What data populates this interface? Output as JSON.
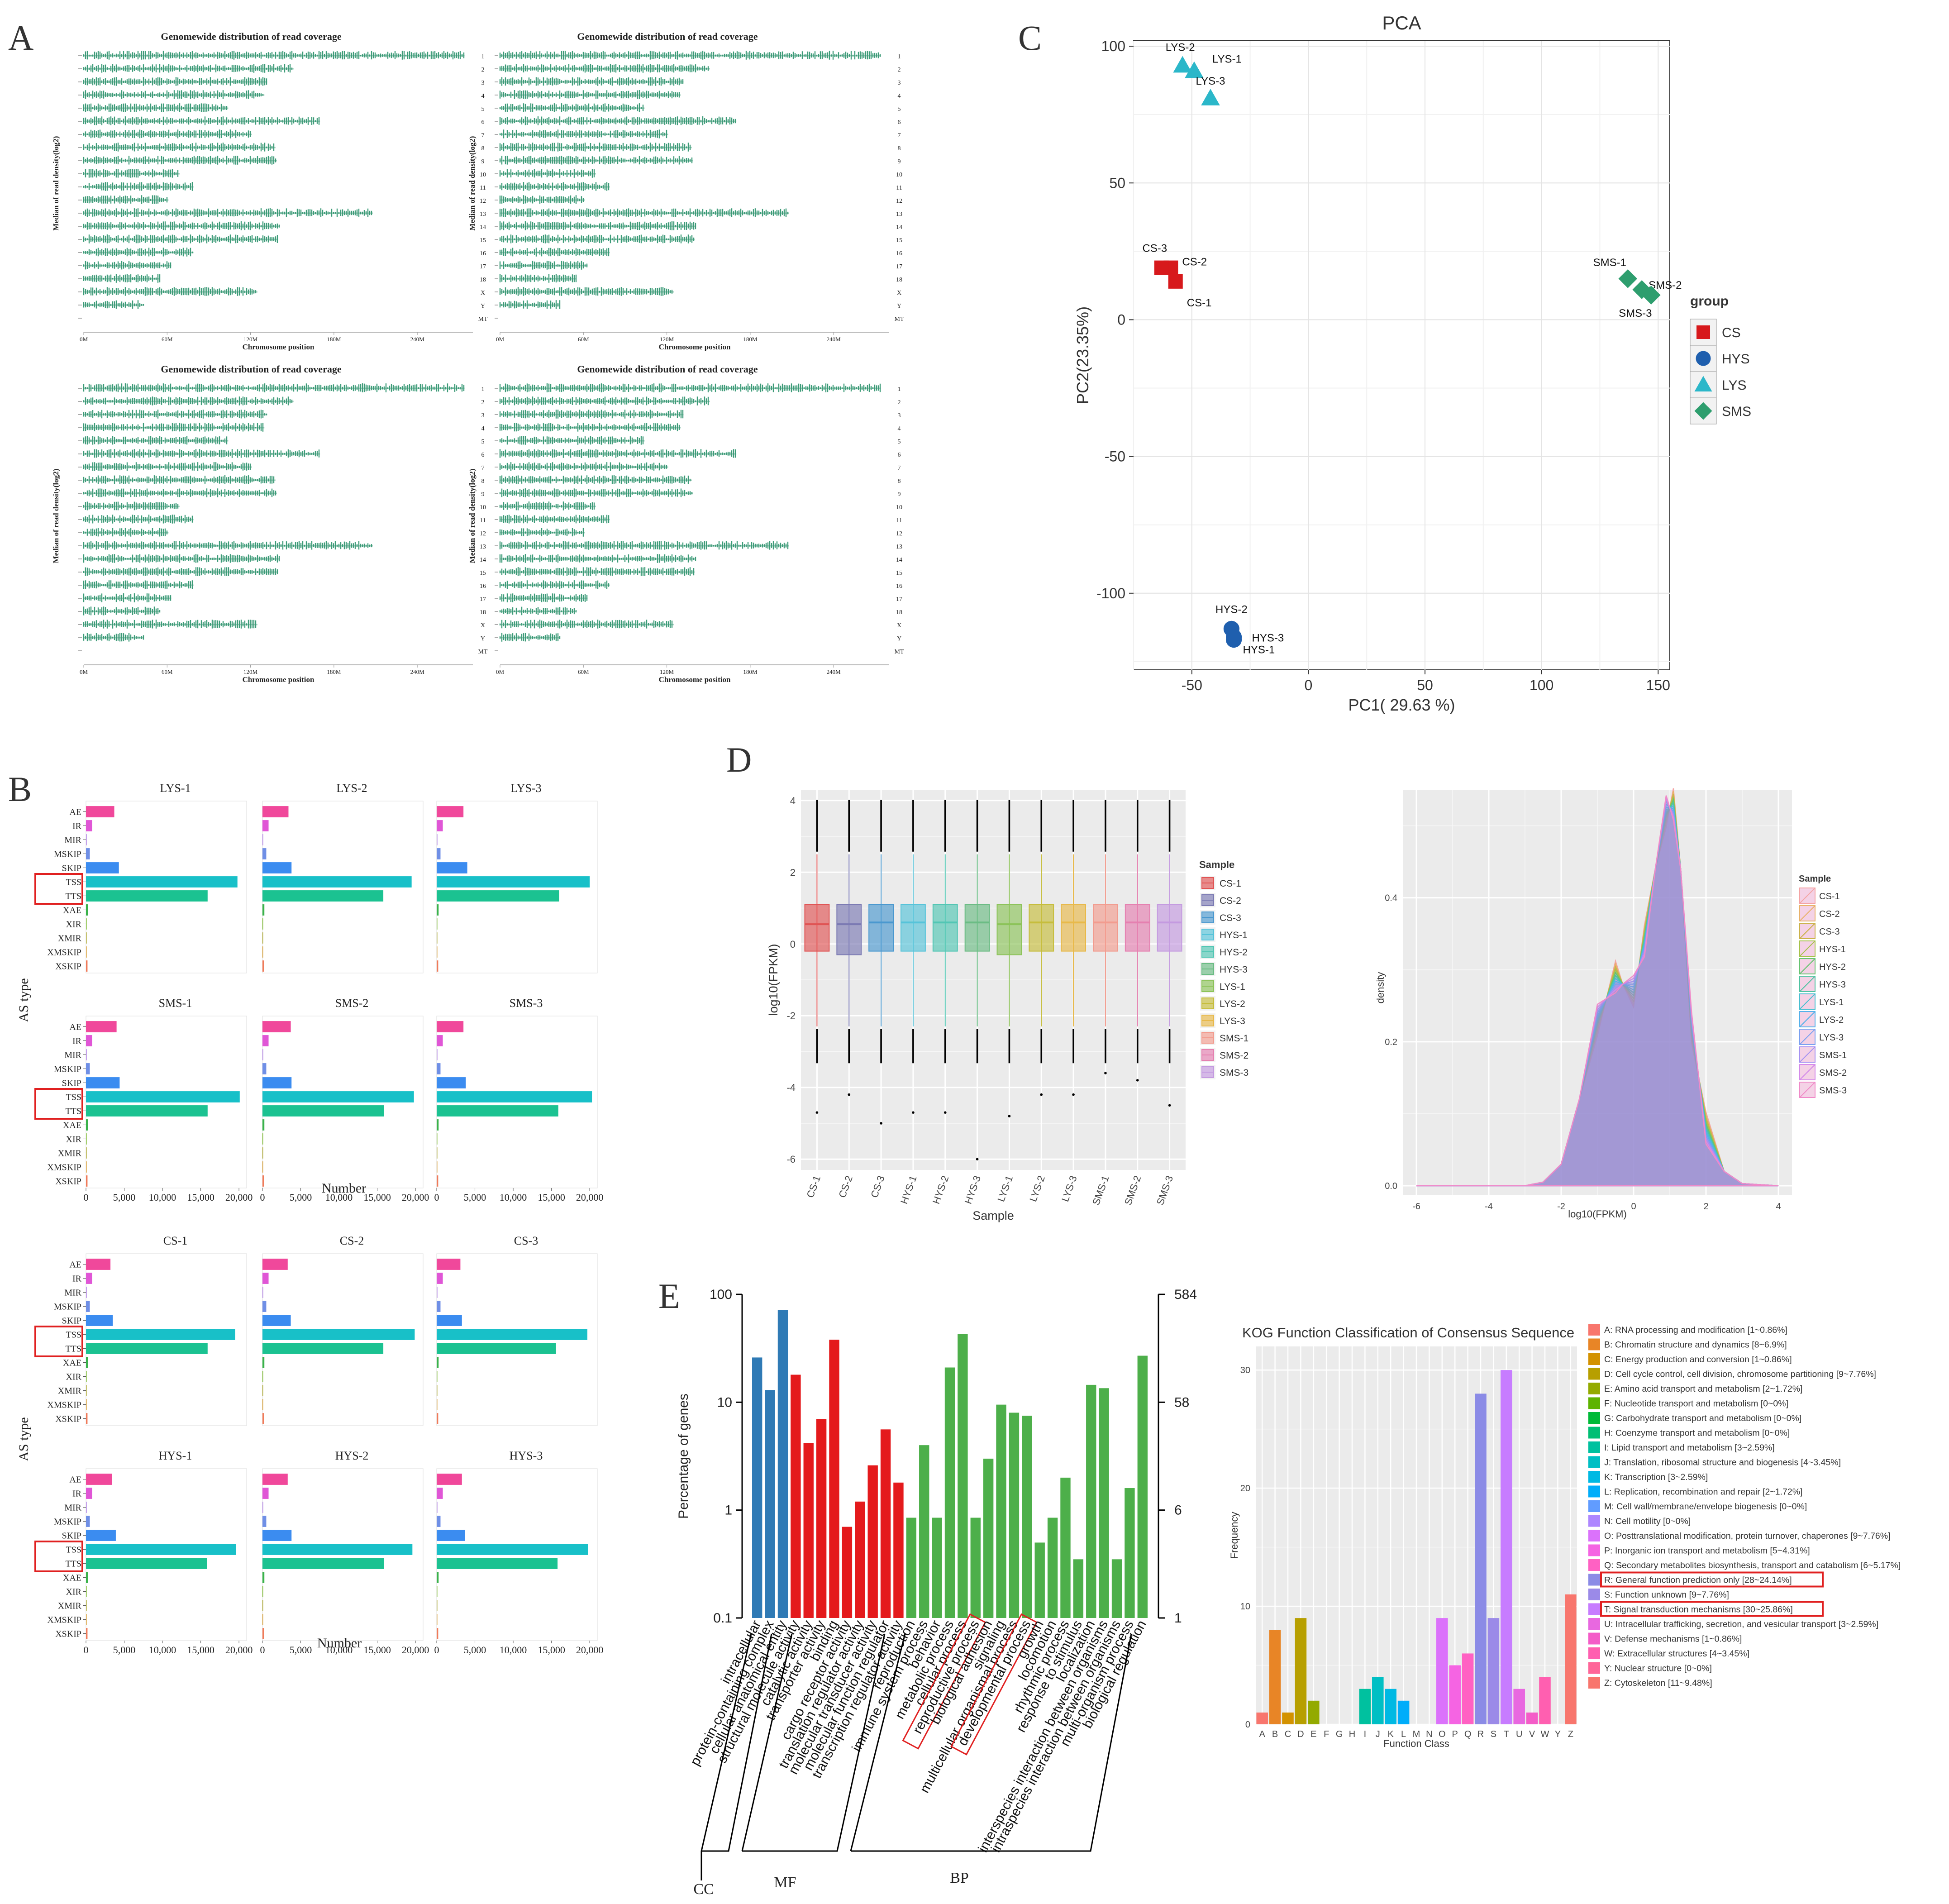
{
  "panel_letters": [
    "A",
    "B",
    "C",
    "D",
    "E"
  ],
  "colors": {
    "CS": "#d7191c",
    "HYS": "#1f5fae",
    "LYS": "#2bb7c9",
    "SMS": "#2e9e6e",
    "coverage": "#3d9b78",
    "AE": "#f0489b",
    "IR": "#e056d6",
    "MIR": "#b58ae6",
    "MSKIP": "#6f8fe6",
    "SKIP": "#3b8cf0",
    "TSS": "#18c0c8",
    "TTS": "#1bc291",
    "XAE": "#39b24a",
    "XIR": "#78b82a",
    "XMIR": "#a9a52a",
    "XMSKIP": "#d59a2c",
    "XSKIP": "#f07b5a",
    "highlight": "#e02020",
    "go_cc": "#2f7ab5",
    "go_mf": "#e41a1c",
    "go_bp": "#4daf4a"
  },
  "panelA": {
    "title": "Genomewide distribution of read coverage",
    "xlabel": "Chromosome position",
    "ylabel": "Median of read density(log2)",
    "chromosomes": [
      "1",
      "2",
      "3",
      "4",
      "5",
      "6",
      "7",
      "8",
      "9",
      "10",
      "11",
      "12",
      "13",
      "14",
      "15",
      "16",
      "17",
      "18",
      "X",
      "Y",
      "MT"
    ],
    "chrom_lengths_mb": [
      274,
      151,
      132,
      130,
      104,
      170,
      121,
      138,
      139,
      69,
      79,
      61,
      208,
      141,
      140,
      79,
      63,
      55,
      125,
      43,
      0
    ],
    "xticks": [
      "0M",
      "60M",
      "120M",
      "180M",
      "240M"
    ]
  },
  "chart_data": [
    {
      "type": "scatter",
      "panel": "C",
      "title": "PCA",
      "xlabel": "PC1( 29.63 %)",
      "ylabel": "PC2(23.35%)",
      "xlim": [
        -75,
        155
      ],
      "ylim": [
        -128,
        102
      ],
      "xticks": [
        -50,
        0,
        50,
        100,
        150
      ],
      "yticks": [
        -100,
        -50,
        0,
        50,
        100
      ],
      "legend_title": "group",
      "legend_position": "right",
      "groups": [
        "CS",
        "HYS",
        "LYS",
        "SMS"
      ],
      "points": [
        {
          "label": "LYS-1",
          "group": "LYS",
          "x": -49,
          "y": 91
        },
        {
          "label": "LYS-2",
          "group": "LYS",
          "x": -54,
          "y": 93
        },
        {
          "label": "LYS-3",
          "group": "LYS",
          "x": -42,
          "y": 81
        },
        {
          "label": "CS-1",
          "group": "CS",
          "x": -57,
          "y": 14
        },
        {
          "label": "CS-2",
          "group": "CS",
          "x": -59,
          "y": 19
        },
        {
          "label": "CS-3",
          "group": "CS",
          "x": -63,
          "y": 19
        },
        {
          "label": "SMS-1",
          "group": "SMS",
          "x": 137,
          "y": 15
        },
        {
          "label": "SMS-2",
          "group": "SMS",
          "x": 143,
          "y": 11
        },
        {
          "label": "SMS-3",
          "group": "SMS",
          "x": 147,
          "y": 9
        },
        {
          "label": "HYS-1",
          "group": "HYS",
          "x": -32,
          "y": -117
        },
        {
          "label": "HYS-2",
          "group": "HYS",
          "x": -33,
          "y": -113
        },
        {
          "label": "HYS-3",
          "group": "HYS",
          "x": -32,
          "y": -116
        }
      ]
    },
    {
      "type": "bar",
      "panel": "B",
      "orientation": "horizontal",
      "ylabel": "AS type",
      "xlabel": "Number",
      "xlim": [
        0,
        21000
      ],
      "xticks": [
        0,
        5000,
        10000,
        15000,
        20000
      ],
      "xtick_labels": [
        "0",
        "5,000",
        "10,000",
        "15,000",
        "20,000"
      ],
      "categories": [
        "AE",
        "IR",
        "MIR",
        "MSKIP",
        "SKIP",
        "TSS",
        "TTS",
        "XAE",
        "XIR",
        "XMIR",
        "XMSKIP",
        "XSKIP"
      ],
      "highlighted": [
        "TSS",
        "TTS"
      ],
      "samples": [
        {
          "name": "LYS-1",
          "values": [
            3700,
            800,
            100,
            500,
            4300,
            19800,
            15900,
            250,
            60,
            30,
            40,
            200
          ]
        },
        {
          "name": "LYS-2",
          "values": [
            3400,
            800,
            100,
            500,
            3800,
            19500,
            15800,
            250,
            60,
            30,
            40,
            200
          ]
        },
        {
          "name": "LYS-3",
          "values": [
            3500,
            800,
            100,
            500,
            4000,
            20000,
            16000,
            250,
            60,
            30,
            40,
            200
          ]
        },
        {
          "name": "SMS-1",
          "values": [
            4000,
            800,
            100,
            500,
            4400,
            20100,
            15900,
            250,
            60,
            30,
            40,
            200
          ]
        },
        {
          "name": "SMS-2",
          "values": [
            3700,
            800,
            100,
            500,
            3800,
            19800,
            15900,
            250,
            60,
            30,
            40,
            200
          ]
        },
        {
          "name": "SMS-3",
          "values": [
            3500,
            800,
            100,
            500,
            3800,
            20300,
            15900,
            250,
            60,
            30,
            40,
            200
          ]
        },
        {
          "name": "CS-1",
          "values": [
            3200,
            800,
            100,
            500,
            3500,
            19500,
            15900,
            250,
            60,
            30,
            40,
            200
          ]
        },
        {
          "name": "CS-2",
          "values": [
            3300,
            800,
            100,
            500,
            3700,
            19900,
            15800,
            250,
            60,
            30,
            40,
            200
          ]
        },
        {
          "name": "CS-3",
          "values": [
            3100,
            800,
            100,
            500,
            3300,
            19700,
            15600,
            250,
            60,
            30,
            40,
            200
          ]
        },
        {
          "name": "HYS-1",
          "values": [
            3400,
            800,
            100,
            500,
            3900,
            19600,
            15800,
            250,
            60,
            30,
            40,
            200
          ]
        },
        {
          "name": "HYS-2",
          "values": [
            3300,
            800,
            100,
            500,
            3800,
            19600,
            15900,
            250,
            60,
            30,
            40,
            200
          ]
        },
        {
          "name": "HYS-3",
          "values": [
            3300,
            800,
            100,
            500,
            3700,
            19800,
            15800,
            250,
            60,
            30,
            40,
            200
          ]
        }
      ]
    },
    {
      "type": "box",
      "panel": "D-box",
      "xlabel": "Sample",
      "ylabel": "log10(FPKM)",
      "ylim": [
        -6.3,
        4.3
      ],
      "yticks": [
        -6,
        -4,
        -2,
        0,
        2,
        4
      ],
      "legend_title": "Sample",
      "legend_position": "right",
      "categories": [
        "CS-1",
        "CS-2",
        "CS-3",
        "HYS-1",
        "HYS-2",
        "HYS-3",
        "LYS-1",
        "LYS-2",
        "LYS-3",
        "SMS-1",
        "SMS-2",
        "SMS-3"
      ],
      "series_colors": [
        "#e05454",
        "#7b7ab3",
        "#4a98cf",
        "#56c3d9",
        "#52c6b4",
        "#6bbc84",
        "#8cc359",
        "#c6bd3c",
        "#e8b94a",
        "#f29c8f",
        "#e580b0",
        "#c49ae0"
      ],
      "q1": [
        -0.2,
        -0.3,
        -0.2,
        -0.2,
        -0.2,
        -0.2,
        -0.3,
        -0.2,
        -0.2,
        -0.2,
        -0.2,
        -0.2
      ],
      "median": [
        0.55,
        0.55,
        0.6,
        0.6,
        0.6,
        0.6,
        0.55,
        0.6,
        0.6,
        0.6,
        0.6,
        0.6
      ],
      "q3": [
        1.1,
        1.1,
        1.1,
        1.1,
        1.1,
        1.1,
        1.1,
        1.1,
        1.1,
        1.1,
        1.1,
        1.1
      ],
      "whisker_low": [
        -2.3,
        -2.3,
        -2.3,
        -2.3,
        -2.3,
        -2.3,
        -2.3,
        -2.3,
        -2.3,
        -2.3,
        -2.3,
        -2.3
      ],
      "whisker_high": [
        2.5,
        2.5,
        2.5,
        2.5,
        2.5,
        2.5,
        2.5,
        2.5,
        2.5,
        2.5,
        2.5,
        2.5
      ],
      "outlier_min": [
        -4.7,
        -4.2,
        -5.0,
        -4.7,
        -4.7,
        -6.0,
        -4.8,
        -4.2,
        -4.2,
        -3.6,
        -3.8,
        -4.5
      ]
    },
    {
      "type": "area",
      "panel": "D-density",
      "xlabel": "log10(FPKM)",
      "ylabel": "density",
      "xlim": [
        -6,
        4
      ],
      "ylim": [
        0,
        0.55
      ],
      "xticks": [
        -6,
        -4,
        -2,
        0,
        2,
        4
      ],
      "yticks": [
        0.0,
        0.2,
        0.4
      ],
      "legend_title": "Sample",
      "legend_position": "right",
      "series": [
        "CS-1",
        "CS-2",
        "CS-3",
        "HYS-1",
        "HYS-2",
        "HYS-3",
        "LYS-1",
        "LYS-2",
        "LYS-3",
        "SMS-1",
        "SMS-2",
        "SMS-3"
      ],
      "x": [
        -6,
        -3,
        -2.5,
        -2,
        -1.5,
        -1,
        -0.5,
        -0.3,
        0,
        0.3,
        0.6,
        0.9,
        1.1,
        1.3,
        1.6,
        2,
        2.5,
        3,
        4
      ],
      "y": [
        0,
        0,
        0.005,
        0.03,
        0.12,
        0.23,
        0.29,
        0.28,
        0.27,
        0.34,
        0.44,
        0.52,
        0.53,
        0.44,
        0.22,
        0.08,
        0.02,
        0.003,
        0
      ]
    },
    {
      "type": "bar",
      "panel": "E-GO",
      "ylabel": "Percentage of genes",
      "y_scale": "log",
      "ylim": [
        0.1,
        100
      ],
      "yticks": [
        "0.1",
        "1",
        "10",
        "100"
      ],
      "right_ticks": [
        "1",
        "6",
        "58",
        "584"
      ],
      "groups": [
        "CC",
        "MF",
        "BP"
      ],
      "categories": [
        "intracellular",
        "protein-containing complex",
        "cellular anatomical entity",
        "structural molecule activity",
        "catalytic activity",
        "transporter activity",
        "binding",
        "cargo receptor activity",
        "translation regulator activity",
        "molecular transducer activity",
        "molecular function regulator",
        "transcription regulator activity",
        "reproduction",
        "immune system process",
        "behavior",
        "metabolic process",
        "cellular process",
        "reproductive process",
        "biological adhesion",
        "signaling",
        "multicellular organismal process",
        "developmental process",
        "growth",
        "locomotion",
        "rhythmic process",
        "response to stimulus",
        "localization",
        "interspecies interaction between organisms",
        "intraspecies interaction between organisms",
        "multi-organism process",
        "biological regulation"
      ],
      "category_group": [
        "CC",
        "CC",
        "CC",
        "MF",
        "MF",
        "MF",
        "MF",
        "MF",
        "MF",
        "MF",
        "MF",
        "MF",
        "BP",
        "BP",
        "BP",
        "BP",
        "BP",
        "BP",
        "BP",
        "BP",
        "BP",
        "BP",
        "BP",
        "BP",
        "BP",
        "BP",
        "BP",
        "BP",
        "BP",
        "BP",
        "BP"
      ],
      "values": [
        26,
        13,
        72,
        18,
        4.2,
        7,
        38,
        0.7,
        1.2,
        2.6,
        5.6,
        1.8,
        0.85,
        4,
        0.85,
        21,
        43,
        0.85,
        3,
        9.5,
        8,
        7.5,
        0.5,
        0.85,
        2,
        0.35,
        14.5,
        13.5,
        0.35,
        1.6,
        27
      ],
      "highlighted": [
        "reproductive process",
        "developmental process"
      ]
    },
    {
      "type": "bar",
      "panel": "E-KOG",
      "title": "KOG Function Classification of Consensus Sequence",
      "xlabel": "Function Class",
      "ylabel": "Frequency",
      "ylim": [
        0,
        32
      ],
      "yticks": [
        0,
        10,
        20,
        30
      ],
      "legend_position": "right",
      "categories": [
        "A",
        "B",
        "C",
        "D",
        "E",
        "F",
        "G",
        "H",
        "I",
        "J",
        "K",
        "L",
        "M",
        "N",
        "O",
        "P",
        "Q",
        "R",
        "S",
        "T",
        "U",
        "V",
        "W",
        "Y",
        "Z"
      ],
      "values": [
        1,
        8,
        1,
        9,
        2,
        0,
        0,
        0,
        3,
        4,
        3,
        2,
        0,
        0,
        9,
        5,
        6,
        28,
        9,
        30,
        3,
        1,
        4,
        0,
        11
      ],
      "bar_colors": [
        "#f8766d",
        "#e88526",
        "#d39200",
        "#b79f00",
        "#93aa00",
        "#5eb300",
        "#00ba38",
        "#00bf74",
        "#00c19f",
        "#00bfc4",
        "#00b9e3",
        "#00adfa",
        "#619cff",
        "#ae87ff",
        "#db72fb",
        "#f564e3",
        "#ff61c3",
        "#8b8be6",
        "#9b8ae8",
        "#c77cff",
        "#e868e0",
        "#f45cc8",
        "#ff5fb0",
        "#ff6699",
        "#f8766d"
      ],
      "legend": [
        "A: RNA processing and modification [1~0.86%]",
        "B: Chromatin structure and dynamics [8~6.9%]",
        "C: Energy production and conversion [1~0.86%]",
        "D: Cell cycle control, cell division, chromosome partitioning [9~7.76%]",
        "E: Amino acid transport and metabolism [2~1.72%]",
        "F: Nucleotide transport and metabolism [0~0%]",
        "G: Carbohydrate transport and metabolism [0~0%]",
        "H: Coenzyme transport and metabolism [0~0%]",
        "I: Lipid transport and metabolism [3~2.59%]",
        "J: Translation, ribosomal structure and biogenesis [4~3.45%]",
        "K: Transcription [3~2.59%]",
        "L: Replication, recombination and repair [2~1.72%]",
        "M: Cell wall/membrane/envelope biogenesis [0~0%]",
        "N: Cell motility [0~0%]",
        "O: Posttranslational modification, protein turnover, chaperones [9~7.76%]",
        "P: Inorganic ion transport and metabolism [5~4.31%]",
        "Q: Secondary metabolites biosynthesis, transport and catabolism [6~5.17%]",
        "R: General function prediction only [28~24.14%]",
        "S: Function unknown [9~7.76%]",
        "T: Signal transduction mechanisms [30~25.86%]",
        "U: Intracellular trafficking, secretion, and vesicular transport [3~2.59%]",
        "V: Defense mechanisms [1~0.86%]",
        "W: Extracellular structures [4~3.45%]",
        "Y: Nuclear structure [0~0%]",
        "Z: Cytoskeleton [11~9.48%]"
      ],
      "highlighted_legend": [
        "R",
        "T"
      ]
    }
  ]
}
